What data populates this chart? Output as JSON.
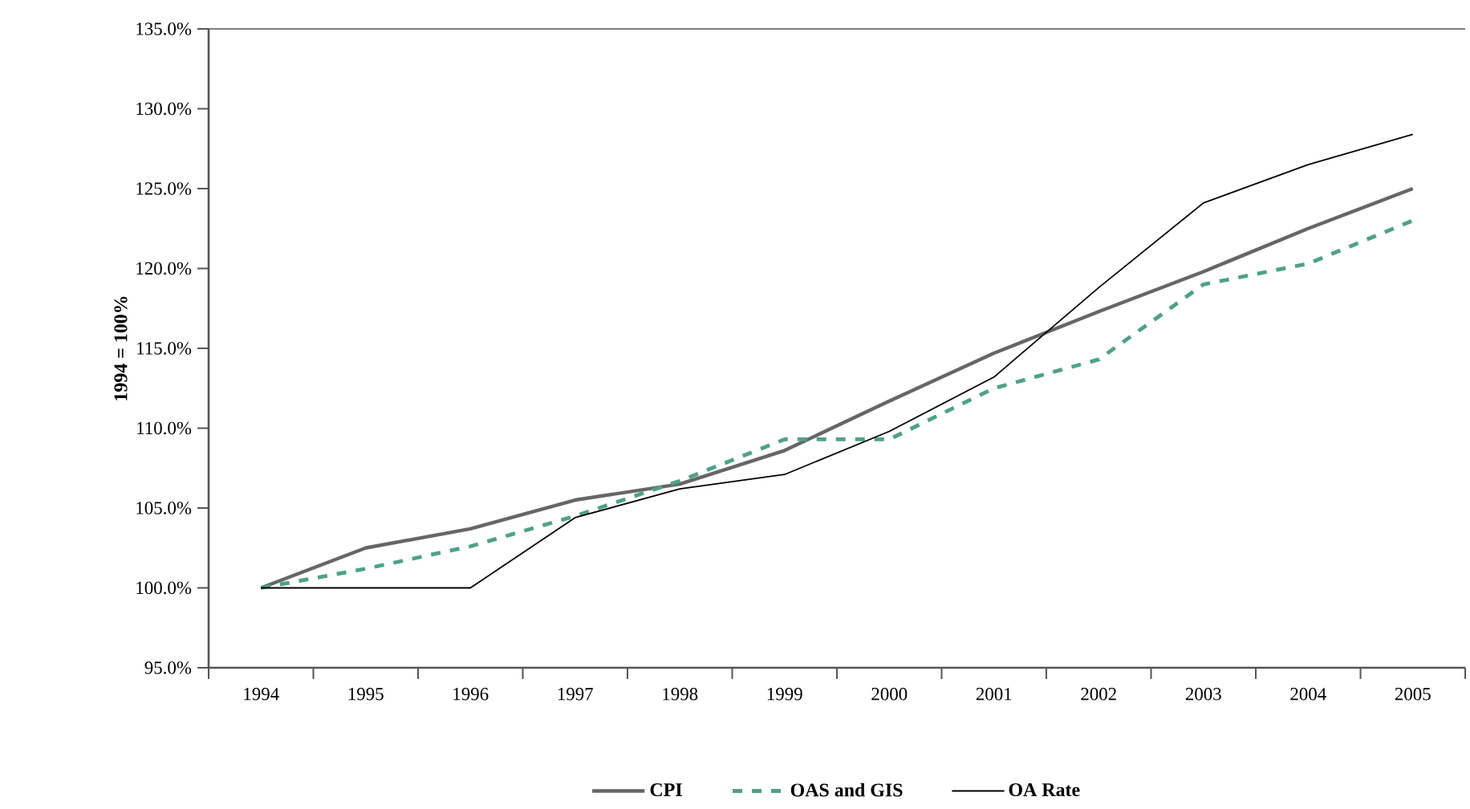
{
  "chart_data": {
    "type": "line",
    "ylabel": "1994 = 100%",
    "categories": [
      "1994",
      "1995",
      "1996",
      "1997",
      "1998",
      "1999",
      "2000",
      "2001",
      "2002",
      "2003",
      "2004",
      "2005"
    ],
    "series": [
      {
        "name": "CPI",
        "color": "#666666",
        "line_style": "solid",
        "values": [
          100.0,
          102.5,
          103.7,
          105.5,
          106.5,
          108.6,
          111.7,
          114.7,
          117.3,
          119.8,
          122.5,
          125.0
        ]
      },
      {
        "name": "OAS and GIS",
        "color": "#4ca383",
        "line_style": "dashed",
        "values": [
          100.0,
          101.2,
          102.6,
          104.5,
          106.7,
          109.3,
          109.3,
          112.5,
          114.3,
          119.0,
          120.3,
          123.0
        ]
      },
      {
        "name": "OA Rate",
        "color": "#000000",
        "line_style": "solid",
        "values": [
          100.0,
          100.0,
          100.0,
          104.4,
          106.2,
          107.1,
          109.8,
          113.2,
          118.8,
          124.1,
          126.5,
          128.4
        ]
      }
    ],
    "ylim": [
      95,
      135
    ],
    "yticks": [
      {
        "value": 95,
        "label": "95.0%"
      },
      {
        "value": 100,
        "label": "100.0%"
      },
      {
        "value": 105,
        "label": "105.0%"
      },
      {
        "value": 110,
        "label": "110.0%"
      },
      {
        "value": 115,
        "label": "115.0%"
      },
      {
        "value": 120,
        "label": "120.0%"
      },
      {
        "value": 125,
        "label": "125.0%"
      },
      {
        "value": 130,
        "label": "130.0%"
      },
      {
        "value": 135,
        "label": "135.0%"
      }
    ],
    "grid": false,
    "legend": "bottom",
    "marker": "none"
  }
}
